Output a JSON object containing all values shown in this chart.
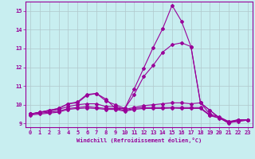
{
  "xlabel": "Windchill (Refroidissement éolien,°C)",
  "ylabel": "",
  "bg_color": "#c8eef0",
  "line_color": "#990099",
  "grid_color": "#b0c8cc",
  "xlim": [
    -0.5,
    23.5
  ],
  "ylim": [
    8.8,
    15.5
  ],
  "yticks": [
    9,
    10,
    11,
    12,
    13,
    14,
    15
  ],
  "xticks": [
    0,
    1,
    2,
    3,
    4,
    5,
    6,
    7,
    8,
    9,
    10,
    11,
    12,
    13,
    14,
    15,
    16,
    17,
    18,
    19,
    20,
    21,
    22,
    23
  ],
  "lines": [
    {
      "x": [
        0,
        1,
        2,
        3,
        4,
        5,
        6,
        7,
        8,
        9,
        10,
        11,
        12,
        13,
        14,
        15,
        16,
        17,
        18,
        19,
        20,
        21,
        22,
        23
      ],
      "y": [
        9.5,
        9.6,
        9.7,
        9.8,
        10.05,
        10.15,
        10.55,
        10.6,
        10.3,
        9.8,
        9.8,
        10.85,
        11.95,
        13.05,
        14.05,
        15.3,
        14.45,
        13.1,
        10.1,
        9.7,
        9.3,
        9.0,
        9.2,
        9.2
      ]
    },
    {
      "x": [
        0,
        1,
        2,
        3,
        4,
        5,
        6,
        7,
        8,
        9,
        10,
        11,
        12,
        13,
        14,
        15,
        16,
        17,
        18,
        19,
        20,
        21,
        22,
        23
      ],
      "y": [
        9.5,
        9.6,
        9.7,
        9.8,
        10.05,
        10.1,
        10.5,
        10.6,
        10.2,
        10.0,
        9.8,
        10.55,
        11.5,
        12.1,
        12.8,
        13.2,
        13.3,
        13.1,
        10.1,
        9.7,
        9.3,
        9.05,
        9.2,
        9.2
      ]
    },
    {
      "x": [
        0,
        1,
        2,
        3,
        4,
        5,
        6,
        7,
        8,
        9,
        10,
        11,
        12,
        13,
        14,
        15,
        16,
        17,
        18,
        19,
        20,
        21,
        22,
        23
      ],
      "y": [
        9.5,
        9.6,
        9.65,
        9.75,
        9.9,
        10.0,
        10.05,
        10.05,
        9.9,
        9.9,
        9.75,
        9.85,
        9.95,
        10.0,
        10.05,
        10.1,
        10.1,
        10.05,
        10.1,
        9.5,
        9.35,
        9.1,
        9.2,
        9.2
      ]
    },
    {
      "x": [
        0,
        1,
        2,
        3,
        4,
        5,
        6,
        7,
        8,
        9,
        10,
        11,
        12,
        13,
        14,
        15,
        16,
        17,
        18,
        19,
        20,
        21,
        22,
        23
      ],
      "y": [
        9.5,
        9.55,
        9.6,
        9.65,
        9.8,
        9.85,
        9.9,
        9.85,
        9.8,
        9.8,
        9.7,
        9.8,
        9.85,
        9.85,
        9.85,
        9.85,
        9.85,
        9.85,
        9.85,
        9.45,
        9.3,
        9.1,
        9.15,
        9.2
      ]
    },
    {
      "x": [
        0,
        1,
        2,
        3,
        4,
        5,
        6,
        7,
        8,
        9,
        10,
        11,
        12,
        13,
        14,
        15,
        16,
        17,
        18,
        19,
        20,
        21,
        22,
        23
      ],
      "y": [
        9.45,
        9.5,
        9.55,
        9.6,
        9.75,
        9.8,
        9.82,
        9.8,
        9.75,
        9.75,
        9.65,
        9.75,
        9.8,
        9.8,
        9.8,
        9.82,
        9.8,
        9.8,
        9.8,
        9.42,
        9.28,
        9.05,
        9.1,
        9.18
      ]
    }
  ]
}
